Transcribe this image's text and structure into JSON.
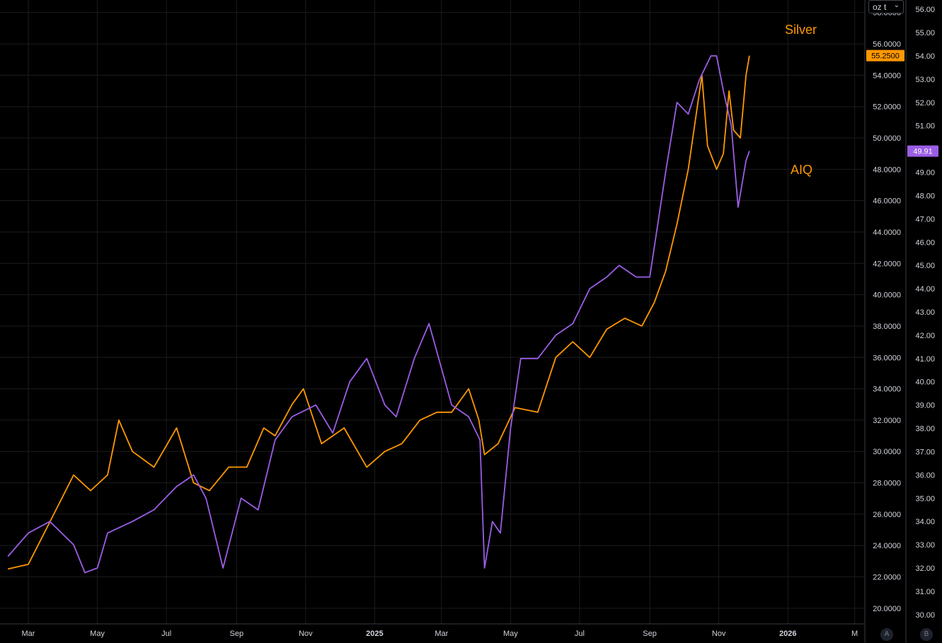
{
  "toolbar": {
    "unit": "oz t"
  },
  "labels": {
    "silver": "Silver",
    "aiq": "AIQ"
  },
  "colors": {
    "silver": "#ff9800",
    "aiq": "#9b5de5",
    "grid": "#1c1c1c",
    "text": "#d1d4dc",
    "axis_border": "#363a45"
  },
  "axis_buttons": {
    "a": "A",
    "b": "B"
  },
  "chart_data": {
    "type": "line",
    "x_tick_labels": [
      "Mar",
      "May",
      "Jul",
      "Sep",
      "Nov",
      "2025",
      "Mar",
      "May",
      "Jul",
      "Sep",
      "Nov",
      "2026",
      "M"
    ],
    "y_left_range": [
      19.0,
      58.8
    ],
    "y_left_ticks": [
      "58.0000",
      "56.0000",
      "54.0000",
      "52.0000",
      "50.0000",
      "48.0000",
      "46.0000",
      "44.0000",
      "42.0000",
      "40.0000",
      "38.0000",
      "36.0000",
      "34.0000",
      "32.0000",
      "30.0000",
      "28.0000",
      "26.0000",
      "24.0000",
      "22.0000",
      "20.0000"
    ],
    "y_right_range": [
      29.6,
      56.4
    ],
    "y_right_ticks": [
      "56.00",
      "55.00",
      "54.00",
      "53.00",
      "52.00",
      "51.00",
      "50.00",
      "49.00",
      "48.00",
      "47.00",
      "46.00",
      "45.00",
      "44.00",
      "43.00",
      "42.00",
      "41.00",
      "40.00",
      "39.00",
      "38.00",
      "37.00",
      "36.00",
      "35.00",
      "34.00",
      "33.00",
      "32.00",
      "31.00",
      "30.00"
    ],
    "series": [
      {
        "name": "Silver",
        "axis": "left",
        "last_value": "55.2500",
        "x": [
          "2024-02-12",
          "2024-03-01",
          "2024-03-20",
          "2024-04-10",
          "2024-04-25",
          "2024-05-10",
          "2024-05-20",
          "2024-06-01",
          "2024-06-20",
          "2024-07-10",
          "2024-07-25",
          "2024-08-08",
          "2024-08-25",
          "2024-09-10",
          "2024-09-25",
          "2024-10-05",
          "2024-10-20",
          "2024-10-30",
          "2024-11-15",
          "2024-12-05",
          "2024-12-25",
          "2025-01-10",
          "2025-01-25",
          "2025-02-10",
          "2025-02-25",
          "2025-03-10",
          "2025-03-25",
          "2025-04-03",
          "2025-04-08",
          "2025-04-20",
          "2025-05-05",
          "2025-05-25",
          "2025-06-10",
          "2025-06-25",
          "2025-07-10",
          "2025-07-25",
          "2025-08-10",
          "2025-08-25",
          "2025-09-05",
          "2025-09-15",
          "2025-09-25",
          "2025-10-05",
          "2025-10-17",
          "2025-10-22",
          "2025-10-30",
          "2025-11-05",
          "2025-11-10",
          "2025-11-14",
          "2025-11-20",
          "2025-11-25",
          "2025-11-28"
        ],
        "y": [
          22.5,
          22.8,
          25.5,
          28.5,
          27.5,
          28.5,
          32.0,
          30.0,
          29.0,
          31.5,
          28.0,
          27.5,
          29.0,
          29.0,
          31.5,
          31.0,
          33.0,
          34.0,
          30.5,
          31.5,
          29.0,
          30.0,
          30.5,
          32.0,
          32.5,
          32.5,
          34.0,
          32.0,
          29.8,
          30.5,
          32.8,
          32.5,
          36.0,
          37.0,
          36.0,
          37.8,
          38.5,
          38.0,
          39.5,
          41.5,
          44.5,
          48.0,
          54.0,
          49.5,
          48.0,
          49.0,
          53.0,
          50.5,
          50.0,
          54.0,
          55.25
        ]
      },
      {
        "name": "AIQ",
        "axis": "right",
        "last_value": "49.91",
        "x": [
          "2024-02-12",
          "2024-03-01",
          "2024-03-20",
          "2024-04-10",
          "2024-04-20",
          "2024-05-01",
          "2024-05-10",
          "2024-06-01",
          "2024-06-20",
          "2024-07-10",
          "2024-07-25",
          "2024-08-05",
          "2024-08-20",
          "2024-09-05",
          "2024-09-20",
          "2024-10-05",
          "2024-10-20",
          "2024-11-10",
          "2024-11-25",
          "2024-12-10",
          "2024-12-25",
          "2025-01-10",
          "2025-01-20",
          "2025-02-05",
          "2025-02-18",
          "2025-03-10",
          "2025-03-25",
          "2025-04-04",
          "2025-04-08",
          "2025-04-15",
          "2025-04-22",
          "2025-05-01",
          "2025-05-10",
          "2025-05-25",
          "2025-06-10",
          "2025-06-25",
          "2025-07-10",
          "2025-07-25",
          "2025-08-05",
          "2025-08-20",
          "2025-09-01",
          "2025-09-15",
          "2025-09-25",
          "2025-10-05",
          "2025-10-15",
          "2025-10-25",
          "2025-10-30",
          "2025-11-05",
          "2025-11-12",
          "2025-11-18",
          "2025-11-25",
          "2025-11-28"
        ],
        "y": [
          32.5,
          33.5,
          34.0,
          33.0,
          31.8,
          32.0,
          33.5,
          34.0,
          34.5,
          35.5,
          36.0,
          35.0,
          32.0,
          35.0,
          34.5,
          37.5,
          38.5,
          39.0,
          37.8,
          40.0,
          41.0,
          39.0,
          38.5,
          41.0,
          42.5,
          39.0,
          38.5,
          37.5,
          32.0,
          34.0,
          33.5,
          38.0,
          41.0,
          41.0,
          42.0,
          42.5,
          44.0,
          44.5,
          45.0,
          44.5,
          44.5,
          49.0,
          52.0,
          51.5,
          53.0,
          54.0,
          54.0,
          52.5,
          51.0,
          47.5,
          49.5,
          49.91
        ]
      }
    ]
  }
}
